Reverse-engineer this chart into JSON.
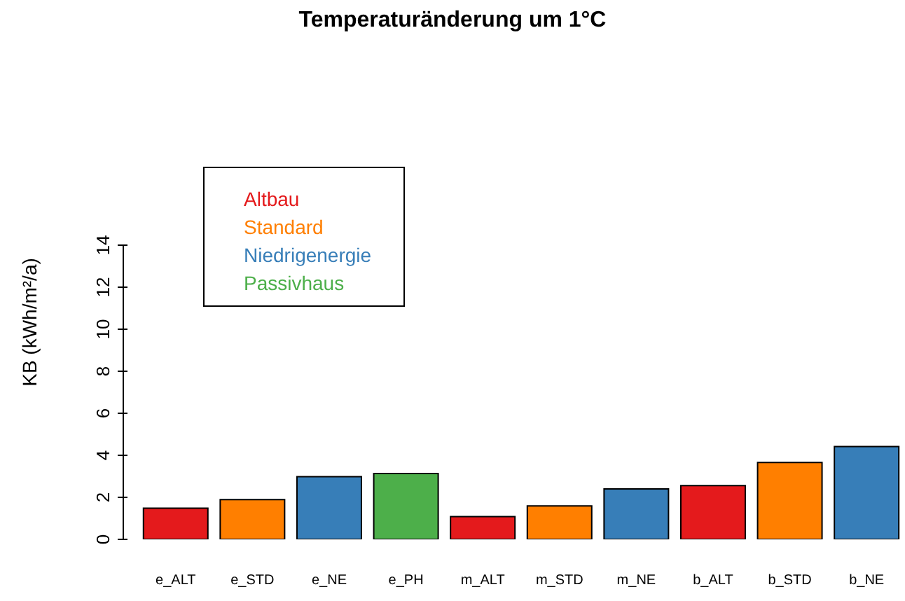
{
  "chart_data": {
    "type": "bar",
    "title": "Temperaturänderung um 1°C",
    "ylabel": "KB (kWh/m²/a)",
    "categories": [
      "e_ALT",
      "e_STD",
      "e_NE",
      "e_PH",
      "m_ALT",
      "m_STD",
      "m_NE",
      "b_ALT",
      "b_STD",
      "b_NE"
    ],
    "series": [
      {
        "name": "Altbau",
        "color": "#e41a1c",
        "values": [
          1.48,
          null,
          null,
          null,
          1.08,
          null,
          null,
          2.56,
          null,
          null
        ]
      },
      {
        "name": "Standard",
        "color": "#ff7f00",
        "values": [
          null,
          1.89,
          null,
          null,
          null,
          1.59,
          null,
          null,
          3.66,
          null
        ]
      },
      {
        "name": "Niedrigenergie",
        "color": "#377eb8",
        "values": [
          null,
          null,
          2.98,
          null,
          null,
          null,
          2.4,
          null,
          null,
          4.42
        ]
      },
      {
        "name": "Passivhaus",
        "color": "#4daf4a",
        "values": [
          null,
          null,
          null,
          3.13,
          null,
          null,
          null,
          null,
          null,
          null
        ]
      }
    ],
    "stacked": true,
    "ylim": [
      0,
      14
    ],
    "yticks": [
      0,
      2,
      4,
      6,
      8,
      10,
      12,
      14
    ],
    "grid": false,
    "legend": "top left"
  }
}
